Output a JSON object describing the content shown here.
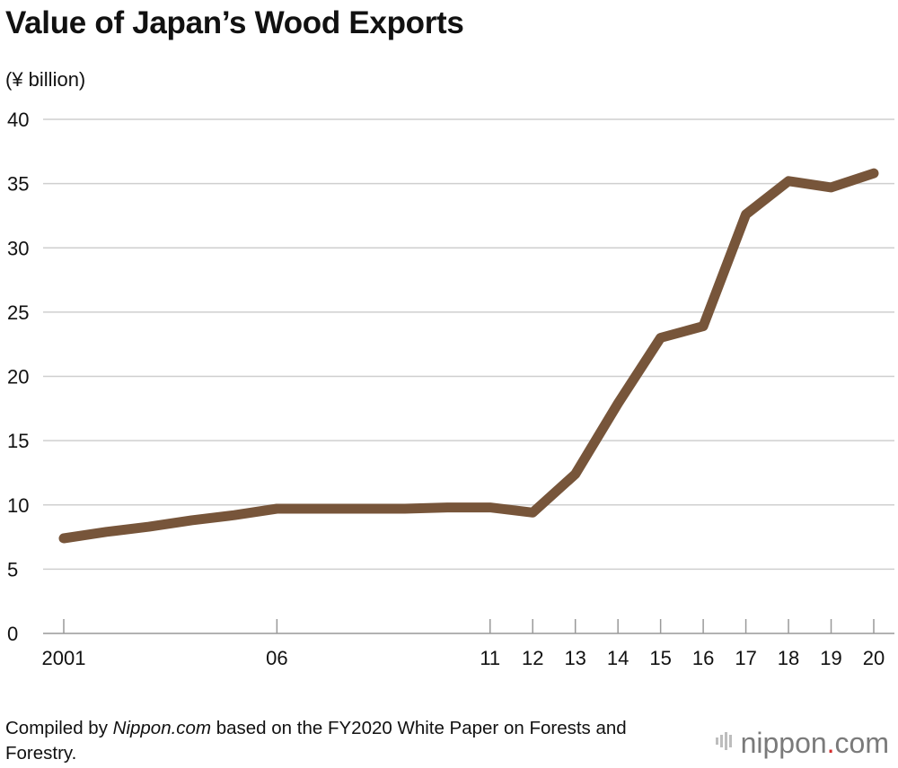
{
  "title": "Value of Japan’s Wood Exports",
  "unit_label": "(¥ billion)",
  "source": {
    "prefix": "Compiled by ",
    "site": "Nippon.com",
    "suffix": " based on the FY2020 White Paper on Forests and Forestry."
  },
  "logo": {
    "left": "nippon",
    "dot": ".",
    "right": "com"
  },
  "colors": {
    "line": "#77553a",
    "grid": "#cfcfcf",
    "axis": "#999999"
  },
  "chart_data": {
    "type": "line",
    "title": "Value of Japan’s Wood Exports",
    "ylabel": "(¥ billion)",
    "xlabel": "",
    "ylim": [
      0,
      40
    ],
    "yticks": [
      0,
      5,
      10,
      15,
      20,
      25,
      30,
      35,
      40
    ],
    "grid": true,
    "x": [
      2001,
      2002,
      2003,
      2004,
      2005,
      2006,
      2007,
      2008,
      2009,
      2010,
      2011,
      2012,
      2013,
      2014,
      2015,
      2016,
      2017,
      2018,
      2019,
      2020
    ],
    "xtick_labels": [
      {
        "year": 2001,
        "label": "2001"
      },
      {
        "year": 2006,
        "label": "06"
      },
      {
        "year": 2011,
        "label": "11"
      },
      {
        "year": 2012,
        "label": "12"
      },
      {
        "year": 2013,
        "label": "13"
      },
      {
        "year": 2014,
        "label": "14"
      },
      {
        "year": 2015,
        "label": "15"
      },
      {
        "year": 2016,
        "label": "16"
      },
      {
        "year": 2017,
        "label": "17"
      },
      {
        "year": 2018,
        "label": "18"
      },
      {
        "year": 2019,
        "label": "19"
      },
      {
        "year": 2020,
        "label": "20"
      }
    ],
    "series": [
      {
        "values": [
          7.4,
          7.9,
          8.3,
          8.8,
          9.2,
          9.7,
          9.7,
          9.7,
          9.7,
          9.8,
          9.8,
          9.4,
          12.4,
          17.9,
          23.0,
          23.9,
          32.6,
          35.2,
          34.7,
          35.8
        ]
      }
    ]
  }
}
